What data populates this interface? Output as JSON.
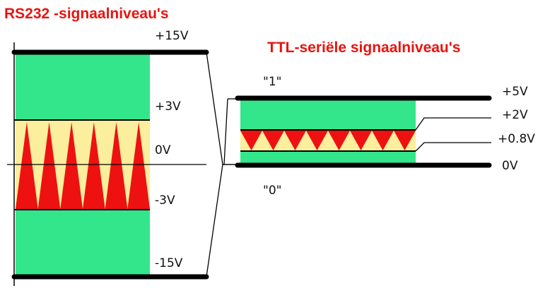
{
  "rs232": {
    "title": "RS232 -signaalniveau's",
    "levels": {
      "plus15": "+15V",
      "plus3": "+3V",
      "zero": "0V",
      "minus3": "-3V",
      "minus15": "-15V"
    }
  },
  "ttl": {
    "title": "TTL-seriële signaalniveau's",
    "levels": {
      "plus5": "+5V",
      "plus2": "+2V",
      "plus08": "+0.8V",
      "zero": "0V"
    },
    "logic_high": "\"1\"",
    "logic_low": "\"0\""
  },
  "colors": {
    "valid_zone": "#33e68c",
    "undefined_zone": "#fbee9c",
    "spike": "#ee1111",
    "rail": "#000000",
    "title": "#e8140f"
  }
}
